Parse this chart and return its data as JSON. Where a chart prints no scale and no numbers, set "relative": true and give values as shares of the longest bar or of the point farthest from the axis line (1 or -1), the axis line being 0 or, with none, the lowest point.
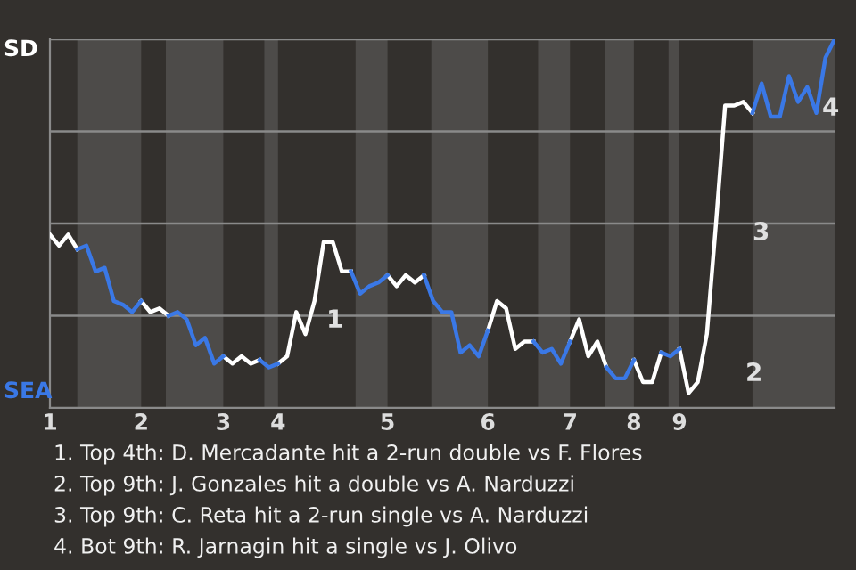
{
  "chart_data": {
    "type": "line",
    "relative": true,
    "categories": [
      "1",
      null,
      null,
      null,
      null,
      null,
      null,
      null,
      null,
      null,
      "2",
      null,
      null,
      null,
      null,
      null,
      null,
      null,
      null,
      "3",
      null,
      null,
      null,
      null,
      null,
      "4",
      null,
      null,
      null,
      null,
      null,
      null,
      null,
      null,
      null,
      null,
      null,
      "5",
      null,
      null,
      null,
      null,
      null,
      null,
      null,
      null,
      null,
      null,
      "6",
      null,
      null,
      null,
      null,
      null,
      null,
      null,
      null,
      "7",
      null,
      null,
      null,
      null,
      null,
      null,
      "8",
      null,
      null,
      null,
      null,
      "9",
      null,
      null,
      null,
      null,
      null,
      null,
      null,
      null,
      null,
      null,
      null,
      null,
      null,
      null,
      null,
      null,
      null
    ],
    "series": [
      {
        "color": "#ffffff",
        "values": [
          0.47,
          0.44,
          0.47,
          0.43,
          null,
          null,
          null,
          null,
          null,
          null,
          0.29,
          0.26,
          0.27,
          0.25,
          null,
          null,
          null,
          null,
          null,
          0.14,
          0.12,
          0.14,
          0.12,
          0.13,
          null,
          0.12,
          0.14,
          0.26,
          0.2,
          0.29,
          0.45,
          0.45,
          0.37,
          0.37,
          null,
          null,
          null,
          0.36,
          0.33,
          0.36,
          0.34,
          0.36,
          null,
          null,
          null,
          null,
          null,
          null,
          0.21,
          0.29,
          0.27,
          0.16,
          0.18,
          0.18,
          null,
          null,
          null,
          0.18,
          0.24,
          0.14,
          0.18,
          0.11,
          null,
          null,
          0.13,
          0.07,
          0.07,
          0.15,
          null,
          0.16,
          0.04,
          0.07,
          0.2,
          0.5,
          0.82,
          0.82,
          0.83,
          0.8,
          null,
          null,
          null,
          null,
          null,
          null,
          null,
          null,
          null
        ]
      },
      {
        "color": "#3a78e6",
        "values": [
          null,
          null,
          null,
          0.43,
          0.44,
          0.37,
          0.38,
          0.29,
          0.28,
          0.26,
          0.29,
          null,
          null,
          0.25,
          0.26,
          0.24,
          0.17,
          0.19,
          0.12,
          0.14,
          null,
          null,
          null,
          0.13,
          0.11,
          0.12,
          null,
          null,
          null,
          null,
          null,
          null,
          null,
          0.37,
          0.31,
          0.33,
          0.34,
          0.36,
          null,
          null,
          null,
          0.36,
          0.29,
          0.26,
          0.26,
          0.15,
          0.17,
          0.14,
          0.21,
          null,
          null,
          null,
          null,
          0.18,
          0.15,
          0.16,
          0.12,
          0.18,
          null,
          null,
          null,
          0.11,
          0.08,
          0.08,
          0.13,
          null,
          null,
          0.15,
          0.14,
          0.16,
          null,
          null,
          null,
          null,
          null,
          null,
          null,
          0.8,
          0.88,
          0.79,
          0.79,
          0.9,
          0.83,
          0.87,
          0.8,
          0.95,
          1.0
        ]
      }
    ],
    "grid": "y",
    "annotations": [
      "SD",
      "SEA",
      "1",
      "2",
      "3",
      "4",
      "1. Top 4th: D. Mercadante hit a 2-run double vs F. Flores",
      "2. Top 9th: J. Gonzales hit a double vs A. Narduzzi",
      "3. Top 9th: C. Reta hit a 2-run single vs A. Narduzzi",
      "4. Bot 9th: R. Jarnagin hit a single vs J. Olivo"
    ]
  }
}
